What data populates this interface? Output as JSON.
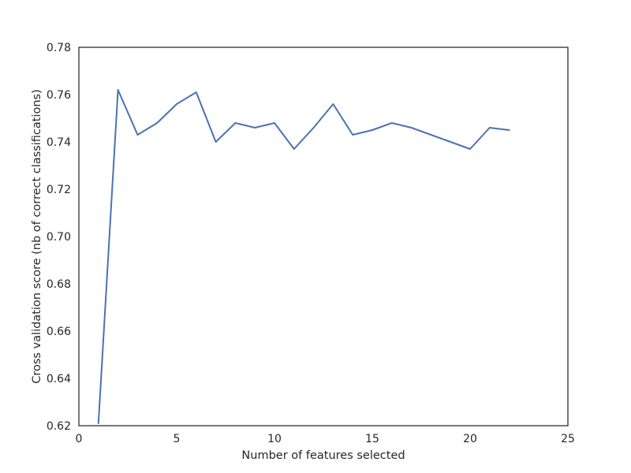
{
  "chart_data": {
    "type": "line",
    "title": "",
    "xlabel": "Number of features selected",
    "ylabel": "Cross validation score (nb of correct classifications)",
    "xlim": [
      0,
      25
    ],
    "ylim": [
      0.62,
      0.78
    ],
    "xticks": [
      0,
      5,
      10,
      15,
      20,
      25
    ],
    "xtick_labels": [
      "0",
      "5",
      "10",
      "15",
      "20",
      "25"
    ],
    "yticks": [
      0.62,
      0.64,
      0.66,
      0.68,
      0.7,
      0.72,
      0.74,
      0.76,
      0.78
    ],
    "ytick_labels": [
      "0.62",
      "0.64",
      "0.66",
      "0.68",
      "0.70",
      "0.72",
      "0.74",
      "0.76",
      "0.78"
    ],
    "grid": false,
    "legend": "none",
    "series": [
      {
        "color": "#4c72b0",
        "x": [
          1,
          2,
          3,
          4,
          5,
          6,
          7,
          8,
          9,
          10,
          11,
          12,
          13,
          14,
          15,
          16,
          17,
          18,
          19,
          20,
          21,
          22
        ],
        "y": [
          0.621,
          0.762,
          0.743,
          0.748,
          0.756,
          0.761,
          0.74,
          0.748,
          0.746,
          0.748,
          0.737,
          0.746,
          0.756,
          0.743,
          0.745,
          0.748,
          0.746,
          0.743,
          0.74,
          0.737,
          0.746,
          0.745
        ]
      }
    ]
  }
}
